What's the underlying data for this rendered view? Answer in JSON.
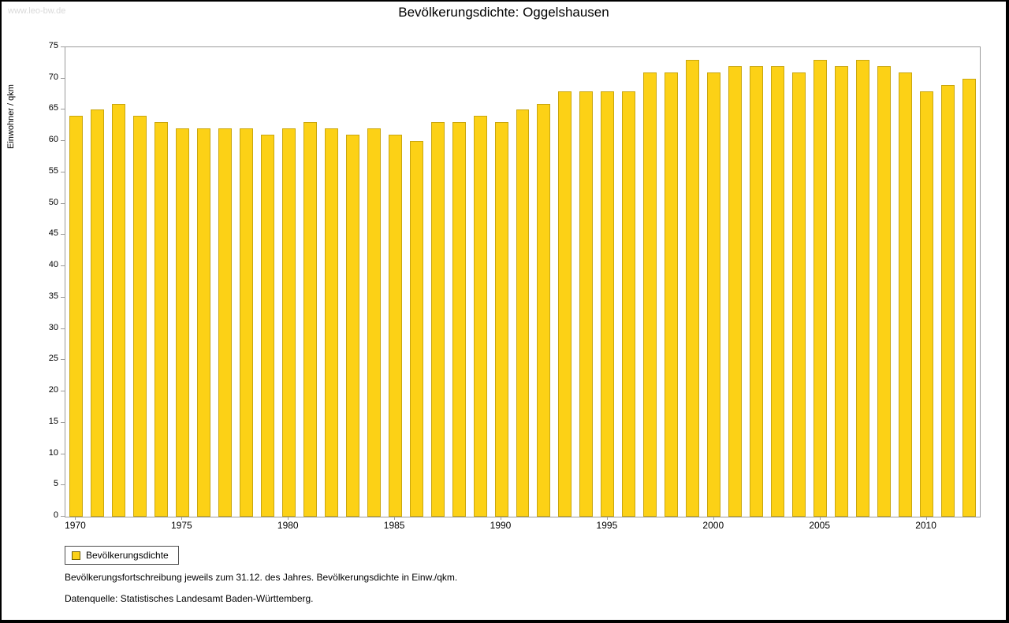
{
  "page": {
    "watermark": "www.leo-bw.de",
    "title": "Bevölkerungsdichte: Oggelshausen",
    "legend_label": "Bevölkerungsdichte",
    "footnote1": "Bevölkerungsfortschreibung jeweils zum 31.12. des Jahres. Bevölkerungsdichte in Einw./qkm.",
    "footnote2": "Datenquelle: Statistisches Landesamt Baden-Württemberg."
  },
  "chart_data": {
    "type": "bar",
    "title": "Bevölkerungsdichte: Oggelshausen",
    "xlabel": "",
    "ylabel": "Einwohner / qkm",
    "ylim": [
      0,
      75
    ],
    "ytick_step": 5,
    "grid": false,
    "legend": [
      "Bevölkerungsdichte"
    ],
    "legend_position": "bottom-left",
    "bar_color": "#FCD116",
    "bar_border_color": "#C9A60E",
    "xtick_labels": [
      1970,
      1975,
      1980,
      1985,
      1990,
      1995,
      2000,
      2005,
      2010
    ],
    "categories": [
      1970,
      1971,
      1972,
      1973,
      1974,
      1975,
      1976,
      1977,
      1978,
      1979,
      1980,
      1981,
      1982,
      1983,
      1984,
      1985,
      1986,
      1987,
      1988,
      1989,
      1990,
      1991,
      1992,
      1993,
      1994,
      1995,
      1996,
      1997,
      1998,
      1999,
      2000,
      2001,
      2002,
      2003,
      2004,
      2005,
      2006,
      2007,
      2008,
      2009,
      2010,
      2011,
      2012
    ],
    "values": [
      64,
      65,
      66,
      64,
      63,
      62,
      62,
      62,
      62,
      61,
      62,
      63,
      62,
      61,
      62,
      61,
      60,
      63,
      63,
      64,
      63,
      65,
      66,
      68,
      68,
      68,
      68,
      71,
      71,
      73,
      71,
      72,
      72,
      72,
      71,
      73,
      72,
      73,
      72,
      71,
      68,
      69,
      70
    ]
  }
}
